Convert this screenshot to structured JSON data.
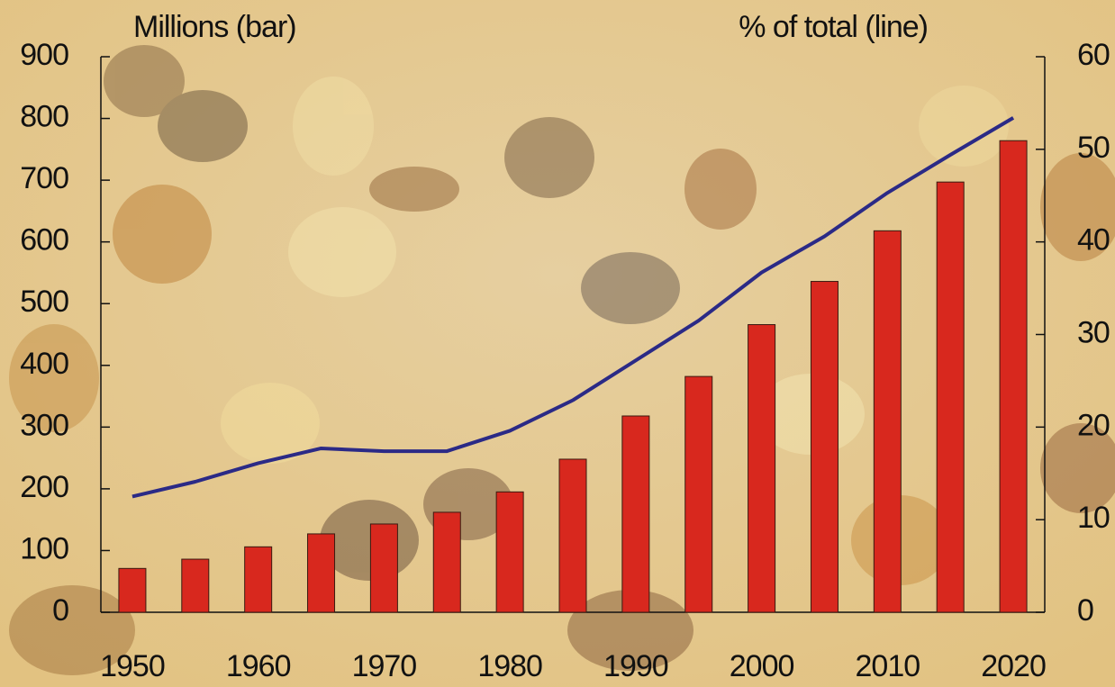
{
  "chart_data": {
    "type": "bar_line",
    "y_label": "Millions (bar)",
    "y2_label": "% of total (line)",
    "categories": [
      1950,
      null,
      1960,
      null,
      1970,
      null,
      1980,
      null,
      1990,
      null,
      2000,
      null,
      2010,
      null,
      2020
    ],
    "series": [
      {
        "type": "bar",
        "color": "#d8281e",
        "values": [
          71,
          86,
          106,
          127,
          143,
          162,
          195,
          248,
          318,
          382,
          466,
          536,
          618,
          697,
          764
        ]
      },
      {
        "type": "line",
        "axis": "y2",
        "color": "#2b2a86",
        "values": [
          12.5,
          14.1,
          16.1,
          17.7,
          17.4,
          17.4,
          19.6,
          22.9,
          27.2,
          31.5,
          36.7,
          40.6,
          45.3,
          49.4,
          53.4
        ]
      }
    ],
    "ylim": [
      0,
      900
    ],
    "yticks": [
      0,
      100,
      200,
      300,
      400,
      500,
      600,
      700,
      800,
      900
    ],
    "y2lim": [
      0,
      60
    ],
    "y2ticks": [
      0,
      10,
      20,
      30,
      40,
      50,
      60
    ]
  }
}
